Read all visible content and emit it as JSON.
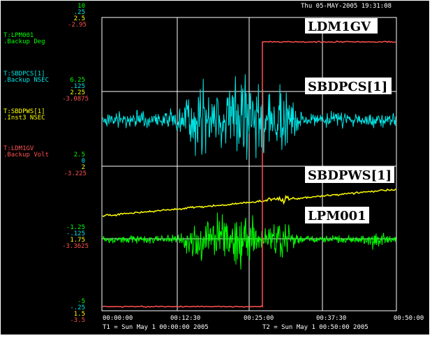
{
  "header": {
    "datetime": "Thu 05-MAY-2005 19:31:08"
  },
  "colors": {
    "background": "#000000",
    "grid": "#ffffff",
    "cyan": "#00e5e5",
    "yellow": "#ffff00",
    "red": "#ff5050",
    "green": "#00ff00"
  },
  "scale_top": {
    "v1": "10",
    "v2": ".25",
    "v3": "2.5",
    "v4": "-2.95"
  },
  "scale_cyan": {
    "v1": "6.25",
    "v2": ".125",
    "v3": "2.25",
    "v4": "-3.0875"
  },
  "scale_yellow": {
    "v1": "2.5",
    "v2": "0",
    "v3": "2",
    "v4": "-3.225"
  },
  "scale_green": {
    "v1": "-1.25",
    "v2": "-.125",
    "v3": "1.75",
    "v4": "-3.3625"
  },
  "scale_bottom": {
    "v1": "-5",
    "v2": "-.25",
    "v3": "1.5",
    "v4": "-3.5"
  },
  "traces": [
    {
      "tag": "T:LPM001",
      "desc": ".Backup Deg",
      "color": "#00ff00"
    },
    {
      "tag": "T:SBDPCS[1]",
      "desc": ".Backup NSEC",
      "color": "#00e5e5"
    },
    {
      "tag": "T:SBDPWS[1]",
      "desc": ".Inst3  NSEC",
      "color": "#ffff00"
    },
    {
      "tag": "T:LDM1GV",
      "desc": ".Backup Volt",
      "color": "#ff5050"
    }
  ],
  "plot_labels": {
    "ldm": "LDM1GV",
    "sbdpcs": "SBDPCS[1]",
    "sbdpws": "SBDPWS[1]",
    "lpm": "LPM001"
  },
  "x_axis": {
    "ticks": [
      "00:00:00",
      "00:12:30",
      "00:25:00",
      "00:37:30",
      "00:50:00"
    ],
    "t1": "T1 = Sun May  1 00:00:00 2005",
    "t2": "T2 = Sun May  1 00:50:00 2005"
  }
}
